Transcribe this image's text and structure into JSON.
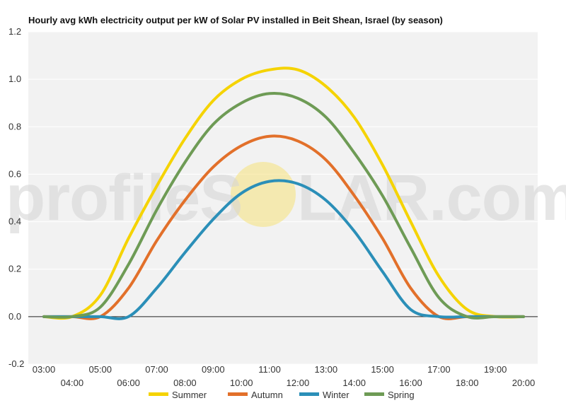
{
  "chart_data": {
    "type": "line",
    "title": "Hourly avg kWh electricity output per kW of Solar PV installed in Beit Shean, Israel (by season)",
    "xlabel": "",
    "ylabel": "",
    "ylim": [
      -0.2,
      1.2
    ],
    "yticks": [
      "-0.2",
      "0.0",
      "0.2",
      "0.4",
      "0.6",
      "0.8",
      "1.0",
      "1.2"
    ],
    "categories": [
      "03:00",
      "04:00",
      "05:00",
      "06:00",
      "07:00",
      "08:00",
      "09:00",
      "10:00",
      "11:00",
      "12:00",
      "13:00",
      "14:00",
      "15:00",
      "16:00",
      "17:00",
      "18:00",
      "19:00",
      "20:00"
    ],
    "grid": true,
    "legend_position": "bottom",
    "series": [
      {
        "name": "Summer",
        "color": "#f5d300",
        "values": [
          0.0,
          0.0,
          0.09,
          0.33,
          0.55,
          0.75,
          0.91,
          1.0,
          1.04,
          1.04,
          0.97,
          0.84,
          0.64,
          0.4,
          0.17,
          0.03,
          0.0,
          0.0
        ]
      },
      {
        "name": "Autumn",
        "color": "#e2702a",
        "values": [
          0.0,
          0.0,
          0.0,
          0.12,
          0.32,
          0.49,
          0.63,
          0.72,
          0.76,
          0.74,
          0.66,
          0.51,
          0.33,
          0.12,
          0.0,
          0.0,
          0.0,
          0.0
        ]
      },
      {
        "name": "Winter",
        "color": "#2b8fb8",
        "values": [
          0.0,
          0.0,
          0.0,
          0.0,
          0.12,
          0.27,
          0.41,
          0.52,
          0.57,
          0.56,
          0.49,
          0.36,
          0.19,
          0.03,
          0.0,
          0.0,
          0.0,
          0.0
        ]
      },
      {
        "name": "Spring",
        "color": "#6e9b55",
        "values": [
          0.0,
          0.0,
          0.04,
          0.22,
          0.45,
          0.65,
          0.81,
          0.9,
          0.94,
          0.92,
          0.84,
          0.69,
          0.51,
          0.29,
          0.08,
          0.0,
          0.0,
          0.0
        ]
      }
    ]
  },
  "watermark": {
    "before": "profileS",
    "after": "LAR.com"
  }
}
